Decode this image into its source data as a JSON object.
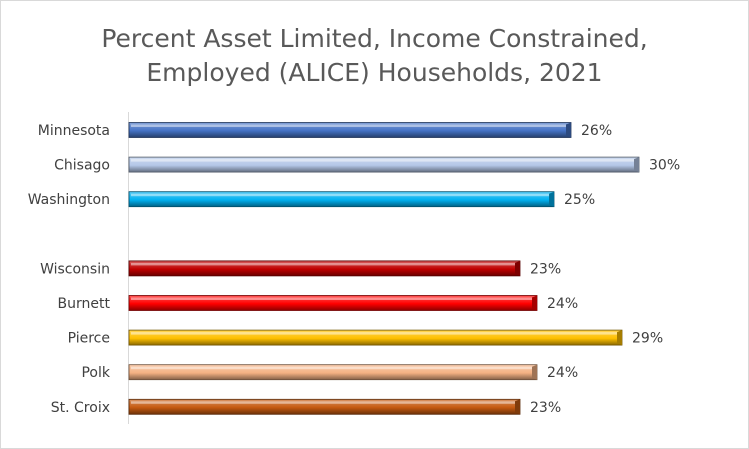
{
  "chart_data": {
    "type": "bar",
    "orientation": "horizontal",
    "title_line1": "Percent Asset Limited, Income Constrained,",
    "title_line2": "Employed (ALICE) Households, 2021",
    "xlim": [
      0,
      31
    ],
    "categories": [
      "Minnesota",
      "Chisago",
      "Washington",
      "",
      "Wisconsin",
      "Burnett",
      "Pierce",
      "Polk",
      "St. Croix"
    ],
    "values": [
      26,
      30,
      25,
      null,
      23,
      24,
      29,
      24,
      23
    ],
    "data_labels": [
      "26%",
      "30%",
      "25%",
      "",
      "23%",
      "24%",
      "29%",
      "24%",
      "23%"
    ],
    "colors": [
      "#4472c4",
      "#b4c7e7",
      "#00b0f0",
      "",
      "#c00000",
      "#ff0000",
      "#ffc000",
      "#f4b183",
      "#c55a11"
    ],
    "grid": false,
    "legend": "none"
  }
}
